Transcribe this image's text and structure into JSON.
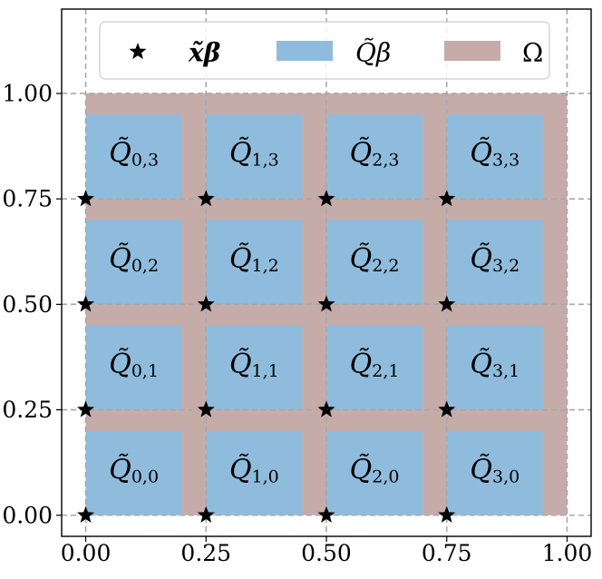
{
  "chart_data": {
    "type": "scatter",
    "title": "",
    "xlabel": "",
    "ylabel": "",
    "xlim": [
      -0.05,
      1.05
    ],
    "ylim": [
      -0.05,
      1.2
    ],
    "xticks": [
      0.0,
      0.25,
      0.5,
      0.75,
      1.0
    ],
    "yticks": [
      0.0,
      0.25,
      0.5,
      0.75,
      1.0
    ],
    "xtick_labels": [
      "0.00",
      "0.25",
      "0.50",
      "0.75",
      "1.00"
    ],
    "ytick_labels": [
      "0.00",
      "0.25",
      "0.50",
      "0.75",
      "1.00"
    ],
    "grid": true,
    "grid_style": "dashed",
    "legend_position": "top",
    "legend": [
      {
        "label": "x̃β",
        "marker": "star",
        "color": "#000000"
      },
      {
        "label": "Q̃β",
        "marker": "patch",
        "color": "#8fbcdc"
      },
      {
        "label": "Ω",
        "marker": "patch",
        "color": "#c5aca9"
      }
    ],
    "omega": {
      "x0": 0.0,
      "x1": 1.0,
      "y0": 0.0,
      "y1": 1.0,
      "color": "#c5aca9"
    },
    "cell_size": 0.2,
    "cell_color": "#8fbcdc",
    "star_color": "#000000",
    "points": [
      {
        "x": 0.0,
        "y": 0.0
      },
      {
        "x": 0.25,
        "y": 0.0
      },
      {
        "x": 0.5,
        "y": 0.0
      },
      {
        "x": 0.75,
        "y": 0.0
      },
      {
        "x": 0.0,
        "y": 0.25
      },
      {
        "x": 0.25,
        "y": 0.25
      },
      {
        "x": 0.5,
        "y": 0.25
      },
      {
        "x": 0.75,
        "y": 0.25
      },
      {
        "x": 0.0,
        "y": 0.5
      },
      {
        "x": 0.25,
        "y": 0.5
      },
      {
        "x": 0.5,
        "y": 0.5
      },
      {
        "x": 0.75,
        "y": 0.5
      },
      {
        "x": 0.0,
        "y": 0.75
      },
      {
        "x": 0.25,
        "y": 0.75
      },
      {
        "x": 0.5,
        "y": 0.75
      },
      {
        "x": 0.75,
        "y": 0.75
      }
    ],
    "cells": [
      {
        "label": "Q̃",
        "sub": "0,0",
        "x": 0.0,
        "y": 0.0
      },
      {
        "label": "Q̃",
        "sub": "1,0",
        "x": 0.25,
        "y": 0.0
      },
      {
        "label": "Q̃",
        "sub": "2,0",
        "x": 0.5,
        "y": 0.0
      },
      {
        "label": "Q̃",
        "sub": "3,0",
        "x": 0.75,
        "y": 0.0
      },
      {
        "label": "Q̃",
        "sub": "0,1",
        "x": 0.0,
        "y": 0.25
      },
      {
        "label": "Q̃",
        "sub": "1,1",
        "x": 0.25,
        "y": 0.25
      },
      {
        "label": "Q̃",
        "sub": "2,1",
        "x": 0.5,
        "y": 0.25
      },
      {
        "label": "Q̃",
        "sub": "3,1",
        "x": 0.75,
        "y": 0.25
      },
      {
        "label": "Q̃",
        "sub": "0,2",
        "x": 0.0,
        "y": 0.5
      },
      {
        "label": "Q̃",
        "sub": "1,2",
        "x": 0.25,
        "y": 0.5
      },
      {
        "label": "Q̃",
        "sub": "2,2",
        "x": 0.5,
        "y": 0.5
      },
      {
        "label": "Q̃",
        "sub": "3,2",
        "x": 0.75,
        "y": 0.5
      },
      {
        "label": "Q̃",
        "sub": "0,3",
        "x": 0.0,
        "y": 0.75
      },
      {
        "label": "Q̃",
        "sub": "1,3",
        "x": 0.25,
        "y": 0.75
      },
      {
        "label": "Q̃",
        "sub": "2,3",
        "x": 0.5,
        "y": 0.75
      },
      {
        "label": "Q̃",
        "sub": "3,3",
        "x": 0.75,
        "y": 0.75
      }
    ]
  }
}
